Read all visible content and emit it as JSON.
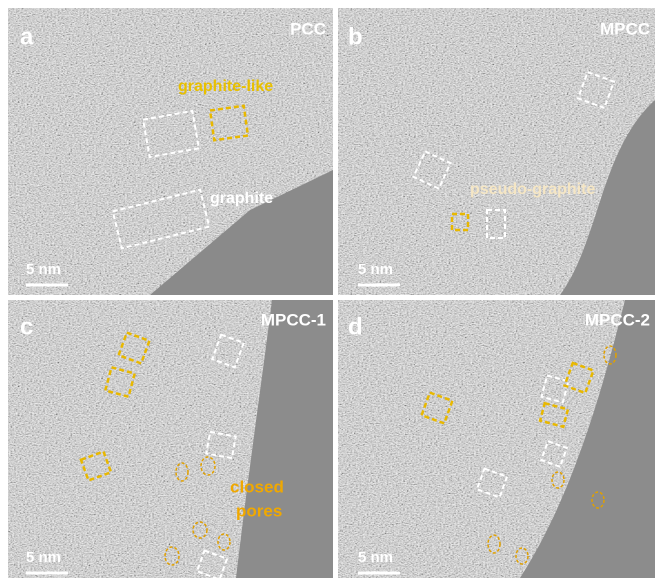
{
  "panels": [
    {
      "label": "a",
      "title": "PCC",
      "annotations": [
        "graphite-like",
        "graphite"
      ],
      "scale_bar": "5 nm"
    },
    {
      "label": "b",
      "title": "MPCC",
      "annotations": [
        "pseudo-graphite"
      ],
      "scale_bar": "5 nm"
    },
    {
      "label": "c",
      "title": "MPCC-1",
      "annotations": [
        "closed",
        "pores"
      ],
      "scale_bar": "5 nm"
    },
    {
      "label": "d",
      "title": "MPCC-2",
      "annotations": [],
      "scale_bar": "5 nm"
    }
  ]
}
